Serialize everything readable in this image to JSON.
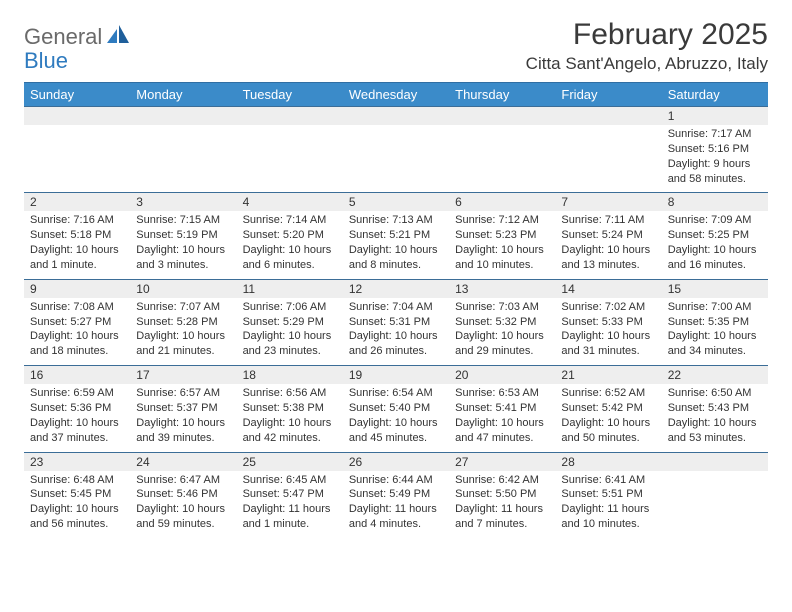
{
  "brand": {
    "part1": "General",
    "part2": "Blue"
  },
  "title": "February 2025",
  "location": "Citta Sant'Angelo, Abruzzo, Italy",
  "colors": {
    "header_bg": "#3b8bc9",
    "header_text": "#ffffff",
    "row_divider": "#3b6d97",
    "daynum_bg": "#eeeeee",
    "text": "#333333",
    "brand_gray": "#6a6a6a",
    "brand_blue": "#2f7bbf"
  },
  "day_labels": [
    "Sunday",
    "Monday",
    "Tuesday",
    "Wednesday",
    "Thursday",
    "Friday",
    "Saturday"
  ],
  "weeks": [
    [
      null,
      null,
      null,
      null,
      null,
      null,
      {
        "n": "1",
        "sunrise": "Sunrise: 7:17 AM",
        "sunset": "Sunset: 5:16 PM",
        "daylight": "Daylight: 9 hours and 58 minutes."
      }
    ],
    [
      {
        "n": "2",
        "sunrise": "Sunrise: 7:16 AM",
        "sunset": "Sunset: 5:18 PM",
        "daylight": "Daylight: 10 hours and 1 minute."
      },
      {
        "n": "3",
        "sunrise": "Sunrise: 7:15 AM",
        "sunset": "Sunset: 5:19 PM",
        "daylight": "Daylight: 10 hours and 3 minutes."
      },
      {
        "n": "4",
        "sunrise": "Sunrise: 7:14 AM",
        "sunset": "Sunset: 5:20 PM",
        "daylight": "Daylight: 10 hours and 6 minutes."
      },
      {
        "n": "5",
        "sunrise": "Sunrise: 7:13 AM",
        "sunset": "Sunset: 5:21 PM",
        "daylight": "Daylight: 10 hours and 8 minutes."
      },
      {
        "n": "6",
        "sunrise": "Sunrise: 7:12 AM",
        "sunset": "Sunset: 5:23 PM",
        "daylight": "Daylight: 10 hours and 10 minutes."
      },
      {
        "n": "7",
        "sunrise": "Sunrise: 7:11 AM",
        "sunset": "Sunset: 5:24 PM",
        "daylight": "Daylight: 10 hours and 13 minutes."
      },
      {
        "n": "8",
        "sunrise": "Sunrise: 7:09 AM",
        "sunset": "Sunset: 5:25 PM",
        "daylight": "Daylight: 10 hours and 16 minutes."
      }
    ],
    [
      {
        "n": "9",
        "sunrise": "Sunrise: 7:08 AM",
        "sunset": "Sunset: 5:27 PM",
        "daylight": "Daylight: 10 hours and 18 minutes."
      },
      {
        "n": "10",
        "sunrise": "Sunrise: 7:07 AM",
        "sunset": "Sunset: 5:28 PM",
        "daylight": "Daylight: 10 hours and 21 minutes."
      },
      {
        "n": "11",
        "sunrise": "Sunrise: 7:06 AM",
        "sunset": "Sunset: 5:29 PM",
        "daylight": "Daylight: 10 hours and 23 minutes."
      },
      {
        "n": "12",
        "sunrise": "Sunrise: 7:04 AM",
        "sunset": "Sunset: 5:31 PM",
        "daylight": "Daylight: 10 hours and 26 minutes."
      },
      {
        "n": "13",
        "sunrise": "Sunrise: 7:03 AM",
        "sunset": "Sunset: 5:32 PM",
        "daylight": "Daylight: 10 hours and 29 minutes."
      },
      {
        "n": "14",
        "sunrise": "Sunrise: 7:02 AM",
        "sunset": "Sunset: 5:33 PM",
        "daylight": "Daylight: 10 hours and 31 minutes."
      },
      {
        "n": "15",
        "sunrise": "Sunrise: 7:00 AM",
        "sunset": "Sunset: 5:35 PM",
        "daylight": "Daylight: 10 hours and 34 minutes."
      }
    ],
    [
      {
        "n": "16",
        "sunrise": "Sunrise: 6:59 AM",
        "sunset": "Sunset: 5:36 PM",
        "daylight": "Daylight: 10 hours and 37 minutes."
      },
      {
        "n": "17",
        "sunrise": "Sunrise: 6:57 AM",
        "sunset": "Sunset: 5:37 PM",
        "daylight": "Daylight: 10 hours and 39 minutes."
      },
      {
        "n": "18",
        "sunrise": "Sunrise: 6:56 AM",
        "sunset": "Sunset: 5:38 PM",
        "daylight": "Daylight: 10 hours and 42 minutes."
      },
      {
        "n": "19",
        "sunrise": "Sunrise: 6:54 AM",
        "sunset": "Sunset: 5:40 PM",
        "daylight": "Daylight: 10 hours and 45 minutes."
      },
      {
        "n": "20",
        "sunrise": "Sunrise: 6:53 AM",
        "sunset": "Sunset: 5:41 PM",
        "daylight": "Daylight: 10 hours and 47 minutes."
      },
      {
        "n": "21",
        "sunrise": "Sunrise: 6:52 AM",
        "sunset": "Sunset: 5:42 PM",
        "daylight": "Daylight: 10 hours and 50 minutes."
      },
      {
        "n": "22",
        "sunrise": "Sunrise: 6:50 AM",
        "sunset": "Sunset: 5:43 PM",
        "daylight": "Daylight: 10 hours and 53 minutes."
      }
    ],
    [
      {
        "n": "23",
        "sunrise": "Sunrise: 6:48 AM",
        "sunset": "Sunset: 5:45 PM",
        "daylight": "Daylight: 10 hours and 56 minutes."
      },
      {
        "n": "24",
        "sunrise": "Sunrise: 6:47 AM",
        "sunset": "Sunset: 5:46 PM",
        "daylight": "Daylight: 10 hours and 59 minutes."
      },
      {
        "n": "25",
        "sunrise": "Sunrise: 6:45 AM",
        "sunset": "Sunset: 5:47 PM",
        "daylight": "Daylight: 11 hours and 1 minute."
      },
      {
        "n": "26",
        "sunrise": "Sunrise: 6:44 AM",
        "sunset": "Sunset: 5:49 PM",
        "daylight": "Daylight: 11 hours and 4 minutes."
      },
      {
        "n": "27",
        "sunrise": "Sunrise: 6:42 AM",
        "sunset": "Sunset: 5:50 PM",
        "daylight": "Daylight: 11 hours and 7 minutes."
      },
      {
        "n": "28",
        "sunrise": "Sunrise: 6:41 AM",
        "sunset": "Sunset: 5:51 PM",
        "daylight": "Daylight: 11 hours and 10 minutes."
      },
      null
    ]
  ]
}
